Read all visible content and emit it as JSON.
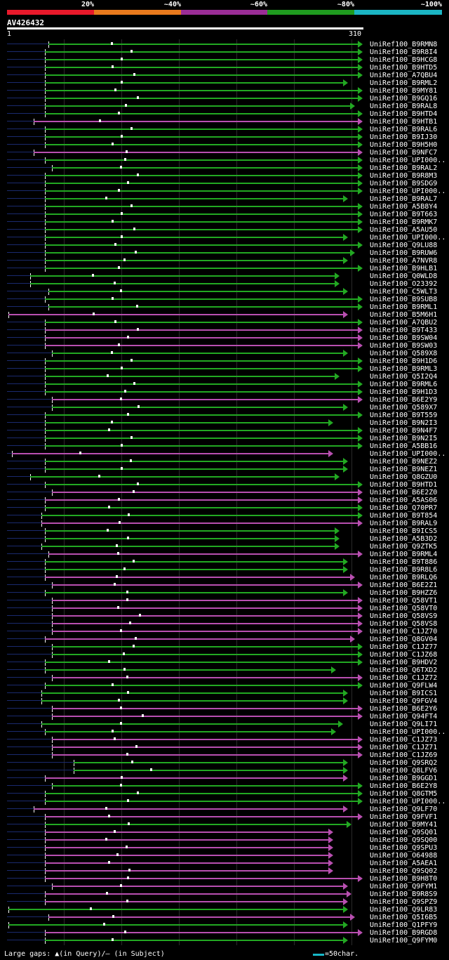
{
  "coverage_legend": [
    {
      "label": "20%",
      "color": "#e8192b"
    },
    {
      "label": "~40%",
      "color": "#e87a1d"
    },
    {
      "label": "~60%",
      "color": "#9a2d96"
    },
    {
      "label": "~80%",
      "color": "#1f9b1f"
    },
    {
      "label": "~100%",
      "color": "#1bb5c4"
    }
  ],
  "query": {
    "id": "AV426432",
    "start": "1",
    "end": "310"
  },
  "footer": {
    "gaps_legend": "Large gaps: ▲(in Query)/– (in Subject)",
    "scale_legend": "=50char."
  },
  "colors": {
    "green": "#22a822",
    "purple": "#b84fb0",
    "background": "#000000",
    "unaligned": "#1a2a6e"
  },
  "hits": [
    {
      "label": "UniRef100_B9RMN8",
      "start": 36,
      "end": 310,
      "color": "green"
    },
    {
      "label": "UniRef100_B9R8I4",
      "start": 33,
      "end": 310,
      "color": "green"
    },
    {
      "label": "UniRef100_B9HCG8",
      "start": 33,
      "end": 310,
      "color": "green"
    },
    {
      "label": "UniRef100_B9HTD5",
      "start": 33,
      "end": 310,
      "color": "green"
    },
    {
      "label": "UniRef100_A7QBU4",
      "start": 33,
      "end": 310,
      "color": "green"
    },
    {
      "label": "UniRef100_B9RML2",
      "start": 33,
      "end": 297,
      "color": "green"
    },
    {
      "label": "UniRef100_B9MY81",
      "start": 33,
      "end": 310,
      "color": "green"
    },
    {
      "label": "UniRef100_B9GQ16",
      "start": 33,
      "end": 310,
      "color": "green"
    },
    {
      "label": "UniRef100_B9RAL8",
      "start": 33,
      "end": 303,
      "color": "green"
    },
    {
      "label": "UniRef100_B9HTD4",
      "start": 33,
      "end": 310,
      "color": "green"
    },
    {
      "label": "UniRef100_B9HTB1",
      "start": 23,
      "end": 310,
      "color": "purple"
    },
    {
      "label": "UniRef100_B9RAL6",
      "start": 33,
      "end": 310,
      "color": "green"
    },
    {
      "label": "UniRef100_B9IJ30",
      "start": 33,
      "end": 310,
      "color": "green"
    },
    {
      "label": "UniRef100_B9H5H0",
      "start": 33,
      "end": 310,
      "color": "green"
    },
    {
      "label": "UniRef100_B9NFC7",
      "start": 23,
      "end": 310,
      "color": "purple"
    },
    {
      "label": "UniRef100_UPI000..",
      "start": 33,
      "end": 310,
      "color": "green"
    },
    {
      "label": "UniRef100_B9RAL2",
      "start": 39,
      "end": 310,
      "color": "green"
    },
    {
      "label": "UniRef100_B9R8M3",
      "start": 33,
      "end": 310,
      "color": "green"
    },
    {
      "label": "UniRef100_B9SDG9",
      "start": 33,
      "end": 310,
      "color": "green"
    },
    {
      "label": "UniRef100_UPI000..",
      "start": 33,
      "end": 310,
      "color": "green"
    },
    {
      "label": "UniRef100_B9RAL7",
      "start": 33,
      "end": 297,
      "color": "green"
    },
    {
      "label": "UniRef100_A5B8Y4",
      "start": 33,
      "end": 310,
      "color": "green"
    },
    {
      "label": "UniRef100_B9T663",
      "start": 33,
      "end": 310,
      "color": "green"
    },
    {
      "label": "UniRef100_B9RMK7",
      "start": 33,
      "end": 310,
      "color": "green"
    },
    {
      "label": "UniRef100_A5AU50",
      "start": 33,
      "end": 310,
      "color": "green"
    },
    {
      "label": "UniRef100_UPI000..",
      "start": 33,
      "end": 297,
      "color": "green"
    },
    {
      "label": "UniRef100_Q9LU88",
      "start": 33,
      "end": 310,
      "color": "green"
    },
    {
      "label": "UniRef100_B9RUW6",
      "start": 33,
      "end": 303,
      "color": "green"
    },
    {
      "label": "UniRef100_A7NVR8",
      "start": 33,
      "end": 297,
      "color": "green"
    },
    {
      "label": "UniRef100_B9HLB1",
      "start": 33,
      "end": 310,
      "color": "green"
    },
    {
      "label": "UniRef100_Q0WLD8",
      "start": 20,
      "end": 290,
      "color": "green"
    },
    {
      "label": "UniRef100_O23392",
      "start": 20,
      "end": 290,
      "color": "green"
    },
    {
      "label": "UniRef100_C5WLT3",
      "start": 36,
      "end": 297,
      "color": "green"
    },
    {
      "label": "UniRef100_B9SUB8",
      "start": 33,
      "end": 310,
      "color": "green"
    },
    {
      "label": "UniRef100_B9RML1",
      "start": 36,
      "end": 310,
      "color": "green"
    },
    {
      "label": "UniRef100_B5M6H1",
      "start": 1,
      "end": 297,
      "color": "purple"
    },
    {
      "label": "UniRef100_A7QBU2",
      "start": 33,
      "end": 310,
      "color": "green"
    },
    {
      "label": "UniRef100_B9T433",
      "start": 33,
      "end": 310,
      "color": "purple"
    },
    {
      "label": "UniRef100_B9SW04",
      "start": 33,
      "end": 310,
      "color": "purple"
    },
    {
      "label": "UniRef100_B9SW03",
      "start": 33,
      "end": 310,
      "color": "purple"
    },
    {
      "label": "UniRef100_Q589X8",
      "start": 39,
      "end": 297,
      "color": "green"
    },
    {
      "label": "UniRef100_B9H1D6",
      "start": 33,
      "end": 310,
      "color": "green"
    },
    {
      "label": "UniRef100_B9RML3",
      "start": 33,
      "end": 310,
      "color": "green"
    },
    {
      "label": "UniRef100_Q5I2Q4",
      "start": 33,
      "end": 290,
      "color": "green"
    },
    {
      "label": "UniRef100_B9RML6",
      "start": 33,
      "end": 310,
      "color": "green"
    },
    {
      "label": "UniRef100_B9H1D3",
      "start": 33,
      "end": 310,
      "color": "green"
    },
    {
      "label": "UniRef100_B6E2Y9",
      "start": 39,
      "end": 310,
      "color": "purple"
    },
    {
      "label": "UniRef100_Q589X7",
      "start": 39,
      "end": 297,
      "color": "green"
    },
    {
      "label": "UniRef100_B9T559",
      "start": 33,
      "end": 310,
      "color": "green"
    },
    {
      "label": "UniRef100_B9N2I3",
      "start": 33,
      "end": 284,
      "color": "green"
    },
    {
      "label": "UniRef100_B9N4F7",
      "start": 33,
      "end": 310,
      "color": "green"
    },
    {
      "label": "UniRef100_B9N2I5",
      "start": 33,
      "end": 310,
      "color": "green"
    },
    {
      "label": "UniRef100_A5BB16",
      "start": 33,
      "end": 310,
      "color": "green"
    },
    {
      "label": "UniRef100_UPI000..",
      "start": 4,
      "end": 284,
      "color": "purple"
    },
    {
      "label": "UniRef100_B9NEZ2",
      "start": 33,
      "end": 297,
      "color": "green"
    },
    {
      "label": "UniRef100_B9NEZ1",
      "start": 33,
      "end": 297,
      "color": "green"
    },
    {
      "label": "UniRef100_Q8GZU0",
      "start": 20,
      "end": 290,
      "color": "green"
    },
    {
      "label": "UniRef100_B9HTD1",
      "start": 33,
      "end": 310,
      "color": "green"
    },
    {
      "label": "UniRef100_B6E2Z0",
      "start": 39,
      "end": 310,
      "color": "purple"
    },
    {
      "label": "UniRef100_A5AS06",
      "start": 33,
      "end": 310,
      "color": "purple"
    },
    {
      "label": "UniRef100_Q70PR7",
      "start": 33,
      "end": 310,
      "color": "green"
    },
    {
      "label": "UniRef100_B9T854",
      "start": 30,
      "end": 310,
      "color": "green"
    },
    {
      "label": "UniRef100_B9RAL9",
      "start": 30,
      "end": 310,
      "color": "purple"
    },
    {
      "label": "UniRef100_B9ICS5",
      "start": 33,
      "end": 290,
      "color": "green"
    },
    {
      "label": "UniRef100_A5B3D2",
      "start": 33,
      "end": 290,
      "color": "green"
    },
    {
      "label": "UniRef100_Q9ZTK5",
      "start": 30,
      "end": 290,
      "color": "green"
    },
    {
      "label": "UniRef100_B9RML4",
      "start": 36,
      "end": 310,
      "color": "purple"
    },
    {
      "label": "UniRef100_B9T886",
      "start": 33,
      "end": 297,
      "color": "green"
    },
    {
      "label": "UniRef100_B9R8L6",
      "start": 33,
      "end": 297,
      "color": "green"
    },
    {
      "label": "UniRef100_B9RLQ6",
      "start": 33,
      "end": 303,
      "color": "purple"
    },
    {
      "label": "UniRef100_B6E2Z1",
      "start": 39,
      "end": 310,
      "color": "purple"
    },
    {
      "label": "UniRef100_B9HZZ6",
      "start": 33,
      "end": 297,
      "color": "green"
    },
    {
      "label": "UniRef100_Q58VT1",
      "start": 39,
      "end": 310,
      "color": "purple"
    },
    {
      "label": "UniRef100_Q58VT0",
      "start": 39,
      "end": 310,
      "color": "purple"
    },
    {
      "label": "UniRef100_Q58VS9",
      "start": 39,
      "end": 310,
      "color": "purple"
    },
    {
      "label": "UniRef100_Q58VS8",
      "start": 39,
      "end": 310,
      "color": "purple"
    },
    {
      "label": "UniRef100_C1JZ70",
      "start": 39,
      "end": 310,
      "color": "purple"
    },
    {
      "label": "UniRef100_Q8GV04",
      "start": 33,
      "end": 303,
      "color": "purple"
    },
    {
      "label": "UniRef100_C1JZ77",
      "start": 39,
      "end": 310,
      "color": "green"
    },
    {
      "label": "UniRef100_C1JZ68",
      "start": 39,
      "end": 310,
      "color": "green"
    },
    {
      "label": "UniRef100_B9HDV2",
      "start": 33,
      "end": 310,
      "color": "green"
    },
    {
      "label": "UniRef100_Q6TXD2",
      "start": 33,
      "end": 287,
      "color": "green"
    },
    {
      "label": "UniRef100_C1JZ72",
      "start": 39,
      "end": 310,
      "color": "purple"
    },
    {
      "label": "UniRef100_Q9FLW4",
      "start": 33,
      "end": 310,
      "color": "green"
    },
    {
      "label": "UniRef100_B9ICS1",
      "start": 30,
      "end": 297,
      "color": "green"
    },
    {
      "label": "UniRef100_Q9FGV4",
      "start": 30,
      "end": 297,
      "color": "green"
    },
    {
      "label": "UniRef100_B6E2Y6",
      "start": 39,
      "end": 310,
      "color": "purple"
    },
    {
      "label": "UniRef100_Q94FT4",
      "start": 39,
      "end": 310,
      "color": "purple"
    },
    {
      "label": "UniRef100_Q9LI71",
      "start": 30,
      "end": 293,
      "color": "green"
    },
    {
      "label": "UniRef100_UPI000..",
      "start": 33,
      "end": 287,
      "color": "green"
    },
    {
      "label": "UniRef100_C1JZ73",
      "start": 39,
      "end": 310,
      "color": "purple"
    },
    {
      "label": "UniRef100_C1JZ71",
      "start": 39,
      "end": 310,
      "color": "purple"
    },
    {
      "label": "UniRef100_C1JZ69",
      "start": 39,
      "end": 310,
      "color": "purple"
    },
    {
      "label": "UniRef100_Q9SRQ2",
      "start": 58,
      "end": 297,
      "color": "green"
    },
    {
      "label": "UniRef100_Q8LFV6",
      "start": 58,
      "end": 297,
      "color": "green"
    },
    {
      "label": "UniRef100_B9GGD1",
      "start": 33,
      "end": 297,
      "color": "purple"
    },
    {
      "label": "UniRef100_B6E2Y8",
      "start": 39,
      "end": 310,
      "color": "green"
    },
    {
      "label": "UniRef100_Q8GTM5",
      "start": 33,
      "end": 310,
      "color": "green"
    },
    {
      "label": "UniRef100_UPI000..",
      "start": 33,
      "end": 310,
      "color": "green"
    },
    {
      "label": "UniRef100_Q9LF70",
      "start": 23,
      "end": 297,
      "color": "purple"
    },
    {
      "label": "UniRef100_Q9FVF1",
      "start": 33,
      "end": 310,
      "color": "purple"
    },
    {
      "label": "UniRef100_B9MY41",
      "start": 33,
      "end": 300,
      "color": "green"
    },
    {
      "label": "UniRef100_Q9SQ01",
      "start": 33,
      "end": 284,
      "color": "purple"
    },
    {
      "label": "UniRef100_Q9SQ00",
      "start": 33,
      "end": 284,
      "color": "purple"
    },
    {
      "label": "UniRef100_Q9SPU3",
      "start": 33,
      "end": 284,
      "color": "purple"
    },
    {
      "label": "UniRef100_O64988",
      "start": 33,
      "end": 284,
      "color": "purple"
    },
    {
      "label": "UniRef100_A5AEA1",
      "start": 33,
      "end": 284,
      "color": "purple"
    },
    {
      "label": "UniRef100_Q9SQ02",
      "start": 33,
      "end": 284,
      "color": "purple"
    },
    {
      "label": "UniRef100_B9H8T0",
      "start": 33,
      "end": 310,
      "color": "purple"
    },
    {
      "label": "UniRef100_Q9FYM1",
      "start": 39,
      "end": 297,
      "color": "purple"
    },
    {
      "label": "UniRef100_B9R8S9",
      "start": 33,
      "end": 300,
      "color": "purple"
    },
    {
      "label": "UniRef100_Q9SPZ9",
      "start": 33,
      "end": 297,
      "color": "purple"
    },
    {
      "label": "UniRef100_Q9LR83",
      "start": 1,
      "end": 297,
      "color": "green"
    },
    {
      "label": "UniRef100_Q5I6B5",
      "start": 36,
      "end": 303,
      "color": "purple"
    },
    {
      "label": "UniRef100_Q1PFY9",
      "start": 1,
      "end": 297,
      "color": "green"
    },
    {
      "label": "UniRef100_B9RGD8",
      "start": 33,
      "end": 310,
      "color": "purple"
    },
    {
      "label": "UniRef100_Q9FYM0",
      "start": 33,
      "end": 297,
      "color": "green"
    }
  ]
}
